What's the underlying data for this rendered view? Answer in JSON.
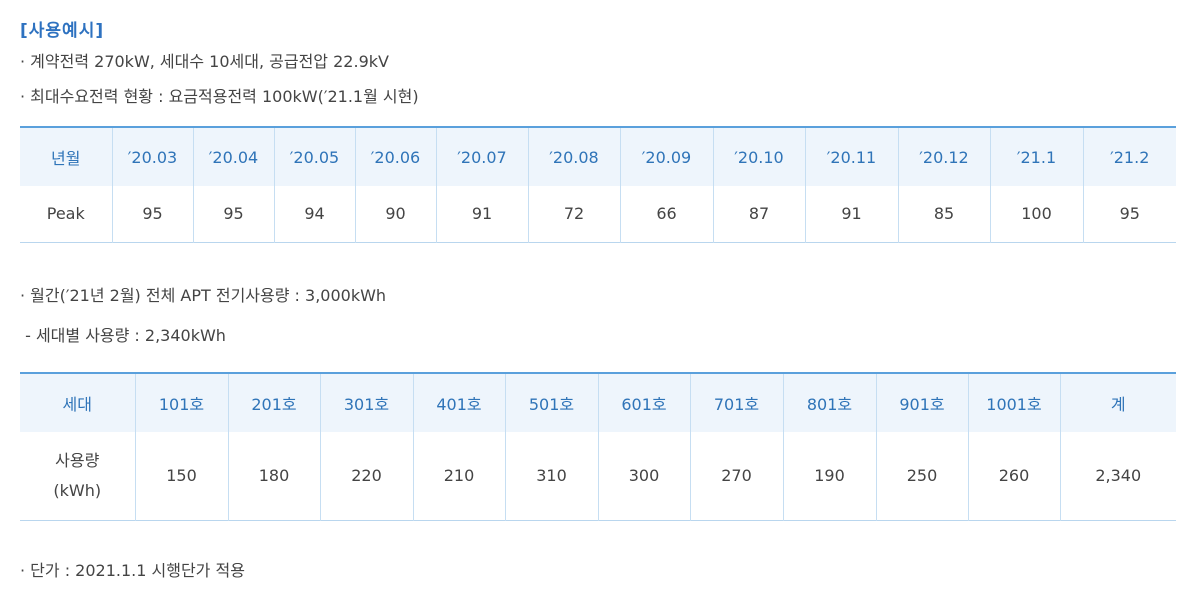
{
  "title": "[사용예시]",
  "intro": [
    "· 계약전력 270kW, 세대수 10세대, 공급전압 22.9kV",
    "· 최대수요전력 현황 : 요금적용전력 100kW(′21.1월 시현)"
  ],
  "table1": {
    "header": [
      "년월",
      "′20.03",
      "′20.04",
      "′20.05",
      "′20.06",
      "′20.07",
      "′20.08",
      "′20.09",
      "′20.10",
      "′20.11",
      "′20.12",
      "′21.1",
      "′21.2"
    ],
    "rows": [
      [
        "Peak",
        95,
        95,
        94,
        90,
        91,
        72,
        66,
        87,
        91,
        85,
        100,
        95
      ]
    ]
  },
  "middle": [
    "· 월간(′21년 2월) 전체 APT 전기사용량 : 3,000kWh",
    " - 세대별 사용량 : 2,340kWh"
  ],
  "table2": {
    "header": [
      "세대",
      "101호",
      "201호",
      "301호",
      "401호",
      "501호",
      "601호",
      "701호",
      "801호",
      "901호",
      "1001호",
      "계"
    ],
    "rows": [
      [
        "사용량\n(kWh)",
        150,
        180,
        220,
        210,
        310,
        300,
        270,
        190,
        250,
        260,
        "2,340"
      ]
    ]
  },
  "footer": "· 단가 : 2021.1.1 시행단가 적용"
}
